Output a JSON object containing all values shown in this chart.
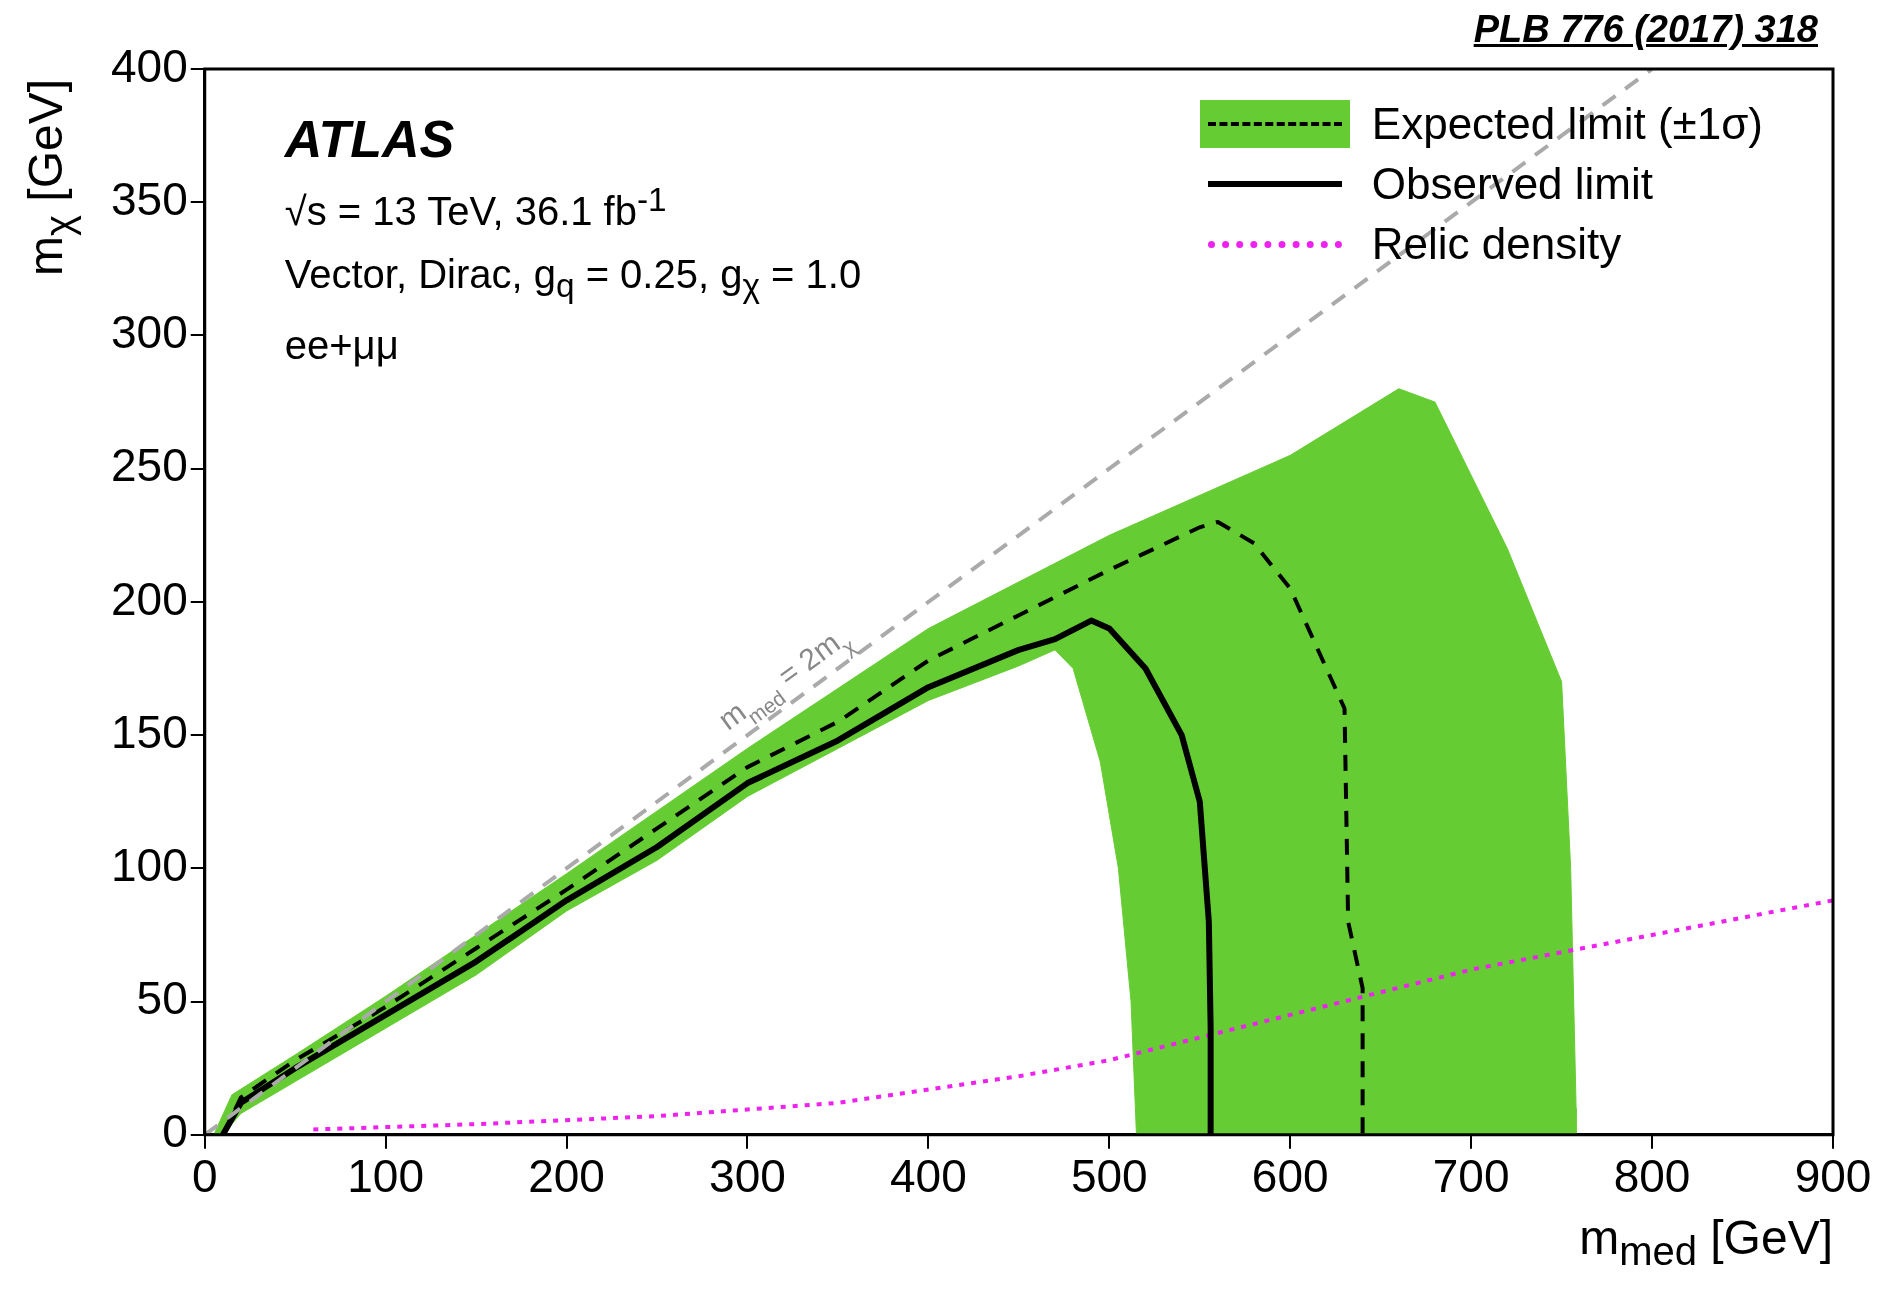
{
  "chart_data": {
    "type": "line",
    "xlabel": "m$_{med}$ [GeV]",
    "ylabel": "m$_{χ}$ [GeV]",
    "xlim": [
      0,
      900
    ],
    "xticks": [
      0,
      100,
      200,
      300,
      400,
      500,
      600,
      700,
      800,
      900
    ],
    "ylim": [
      0,
      400
    ],
    "yticks": [
      0,
      50,
      100,
      150,
      200,
      250,
      300,
      350,
      400
    ],
    "grid": false,
    "legend": "top right",
    "marker": "none",
    "series": [
      {
        "name": "Expected limit (±1σ)",
        "type": "area",
        "color": "#66cc33",
        "x": [
          5,
          15,
          50,
          100,
          200,
          300,
          400,
          500,
          600,
          660,
          680,
          720,
          750,
          755,
          758,
          758,
          515,
          512,
          505,
          495,
          480,
          470,
          450,
          400,
          350,
          300,
          250,
          200,
          150,
          100,
          50,
          20,
          10
        ],
        "values": [
          0,
          15,
          30,
          52,
          98,
          145,
          190,
          225,
          255,
          280,
          275,
          220,
          170,
          100,
          10,
          0,
          0,
          50,
          100,
          140,
          175,
          182,
          176,
          163,
          145,
          127,
          103,
          84,
          60,
          40,
          20,
          8,
          0
        ]
      },
      {
        "color": "#aaaaaa",
        "line_style": "dashed",
        "x": [
          0,
          800
        ],
        "values": [
          0,
          400
        ]
      },
      {
        "color": "#000000",
        "line_style": "dashed",
        "x": [
          10,
          20,
          50,
          100,
          150,
          200,
          250,
          300,
          350,
          400,
          450,
          500,
          550,
          560,
          580,
          600,
          620,
          630,
          632,
          640,
          640
        ],
        "values": [
          0,
          14,
          28,
          48,
          70,
          92,
          115,
          138,
          155,
          178,
          195,
          212,
          228,
          230,
          222,
          205,
          175,
          160,
          80,
          55,
          0
        ]
      },
      {
        "name": "Observed limit",
        "color": "#000000",
        "line_style": "solid",
        "x": [
          10,
          20,
          50,
          100,
          150,
          200,
          250,
          300,
          350,
          400,
          450,
          470,
          490,
          500,
          520,
          540,
          550,
          555,
          556,
          556
        ],
        "values": [
          0,
          12,
          25,
          45,
          65,
          88,
          108,
          132,
          148,
          168,
          182,
          186,
          193,
          190,
          175,
          150,
          125,
          80,
          40,
          0
        ]
      },
      {
        "name": "Relic density",
        "color": "#ee22ee",
        "line_style": "dotted",
        "x": [
          60,
          150,
          250,
          350,
          450,
          500,
          600,
          700,
          800,
          900
        ],
        "values": [
          2,
          4,
          7,
          12,
          22,
          28,
          45,
          62,
          75,
          88
        ]
      }
    ],
    "annotations": [
      "ATLAS",
      "√s = 13 TeV, 36.1 fb$^{-1}$",
      "Vector, Dirac, g$_{q}$ = 0.25, g$_{χ}$ = 1.0",
      "ee+μμ",
      "PLB 776 (2017) 318",
      "m$_{med}$ = 2m$_{χ}$"
    ]
  }
}
